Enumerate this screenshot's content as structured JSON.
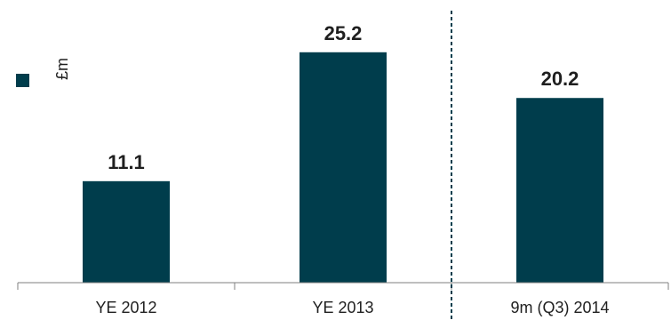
{
  "colors": {
    "bar": "#003d4c",
    "axis": "#7f7f7f",
    "divider": "#003d4c",
    "text": "#1f1f1f"
  },
  "legend": {
    "label": "£m"
  },
  "chart_data": {
    "type": "bar",
    "categories": [
      "YE 2012",
      "YE 2013",
      "9m (Q3) 2014"
    ],
    "values": [
      11.1,
      25.2,
      20.2
    ],
    "value_labels": [
      "11.1",
      "25.2",
      "20.2"
    ],
    "ylabel": "£m",
    "ylim": [
      0,
      28
    ],
    "grid": false,
    "legend_position": "left",
    "divider_between": [
      "YE 2013",
      "9m (Q3) 2014"
    ]
  }
}
